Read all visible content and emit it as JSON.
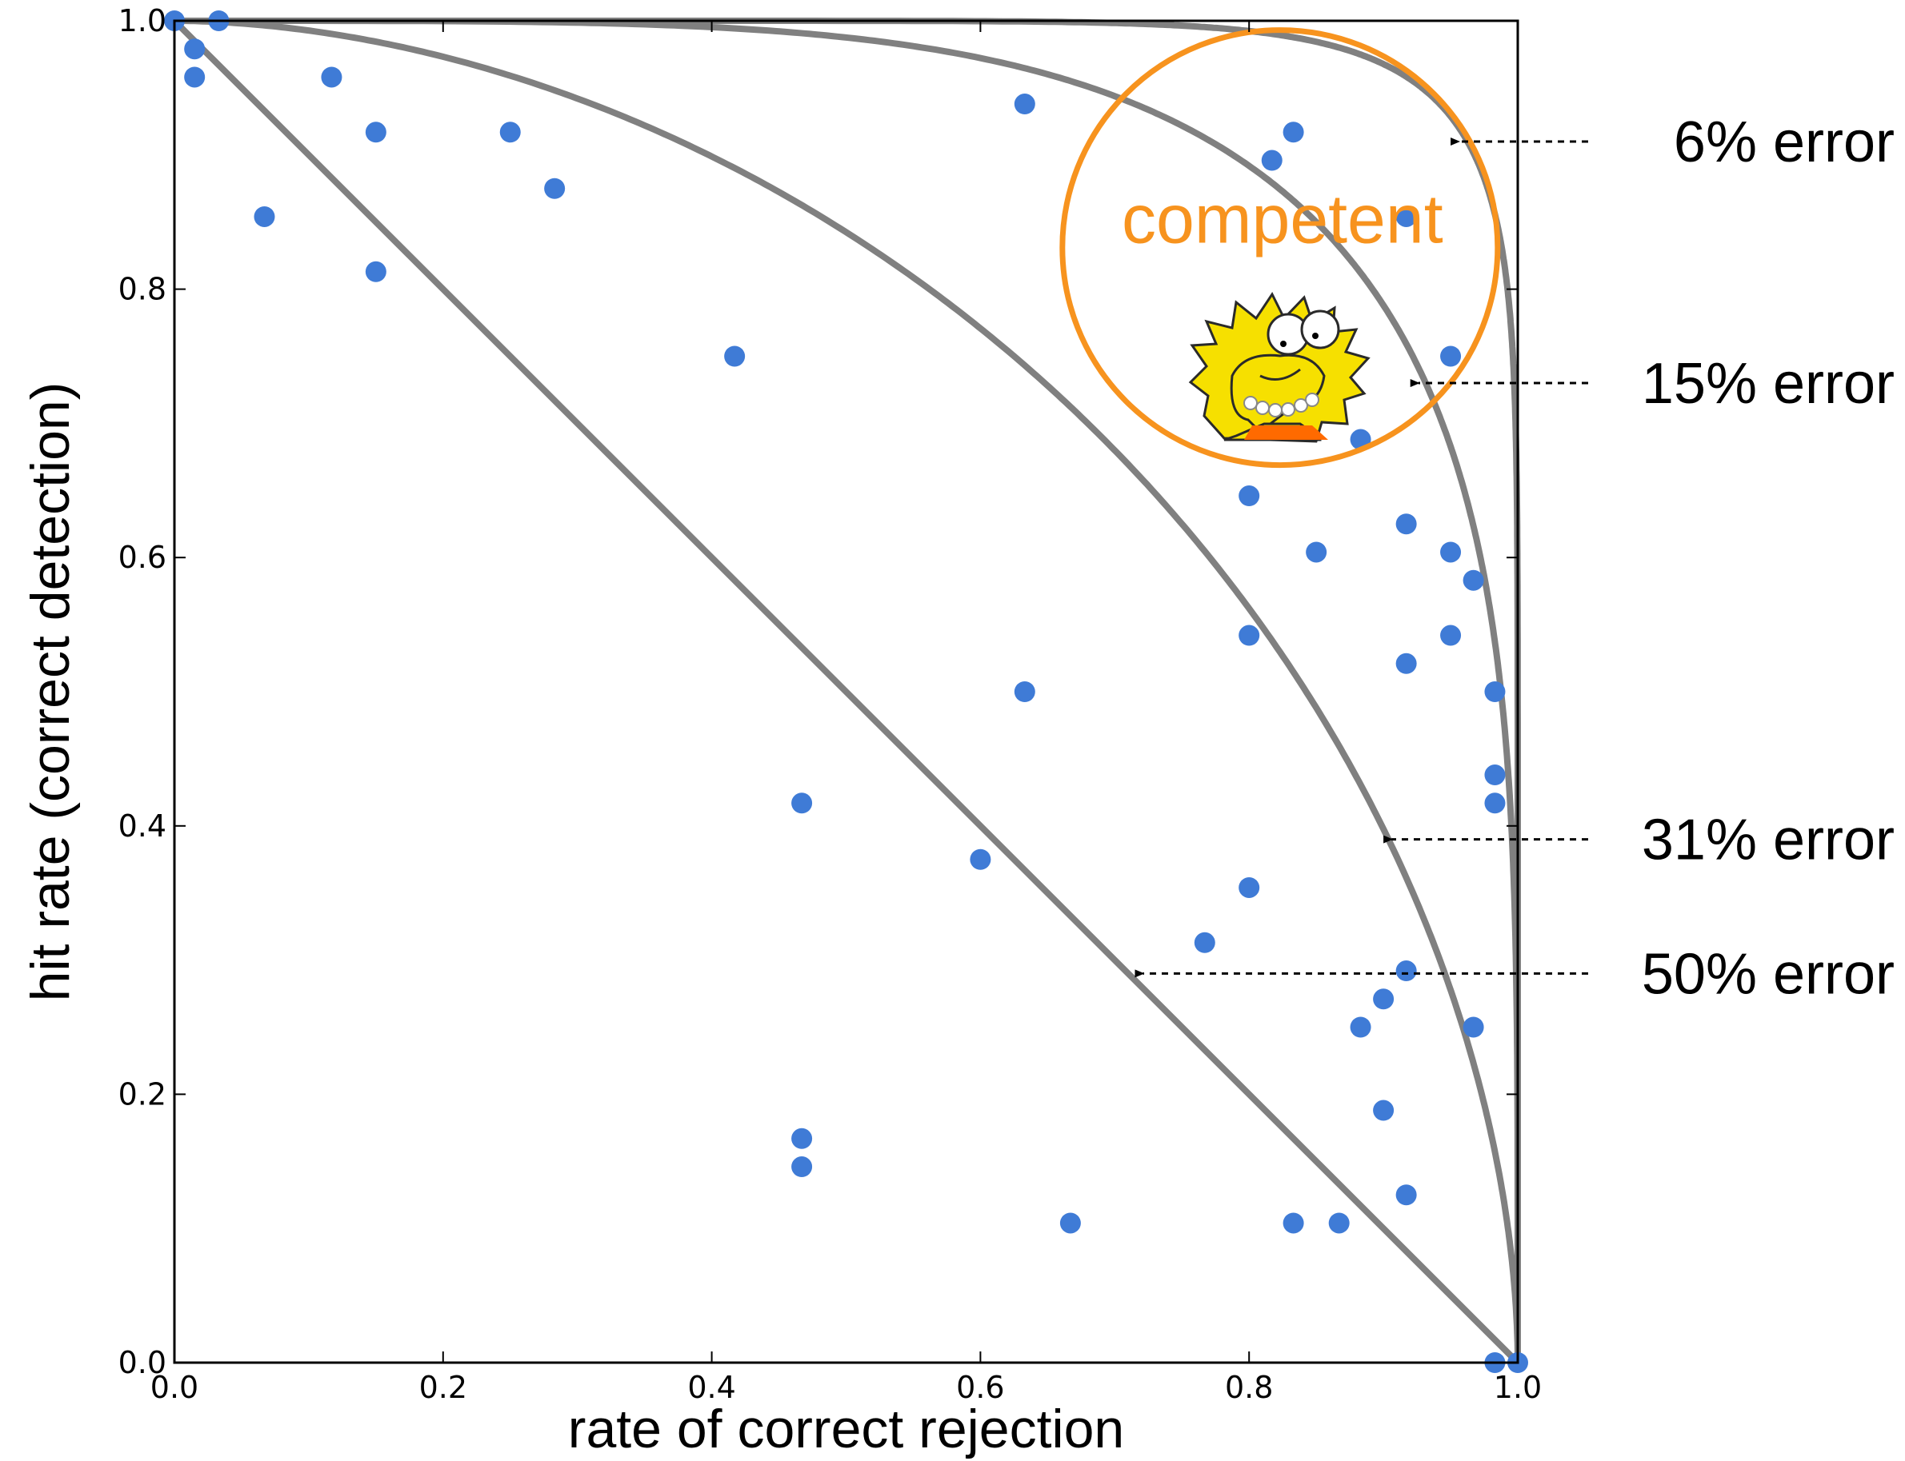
{
  "chart_data": {
    "type": "scatter",
    "xlabel": "rate of correct rejection",
    "ylabel": "hit rate  (correct detection)",
    "xlim": [
      0.0,
      1.0
    ],
    "ylim": [
      0.0,
      1.0
    ],
    "xticks": [
      "0.0",
      "0.2",
      "0.4",
      "0.6",
      "0.8",
      "1.0"
    ],
    "yticks": [
      "0.0",
      "0.2",
      "0.4",
      "0.6",
      "0.8",
      "1.0"
    ],
    "grid": false,
    "point_color": "#3f7bd6",
    "curve_color": "#808080",
    "highlight_color": "#f7931e",
    "points": [
      {
        "x": 0.0,
        "y": 1.0
      },
      {
        "x": 0.033,
        "y": 1.0
      },
      {
        "x": 0.015,
        "y": 0.979
      },
      {
        "x": 0.015,
        "y": 0.958
      },
      {
        "x": 0.117,
        "y": 0.958
      },
      {
        "x": 0.15,
        "y": 0.917
      },
      {
        "x": 0.25,
        "y": 0.917
      },
      {
        "x": 0.283,
        "y": 0.875
      },
      {
        "x": 0.067,
        "y": 0.854
      },
      {
        "x": 0.15,
        "y": 0.813
      },
      {
        "x": 0.417,
        "y": 0.75
      },
      {
        "x": 0.633,
        "y": 0.938
      },
      {
        "x": 0.817,
        "y": 0.896
      },
      {
        "x": 0.833,
        "y": 0.917
      },
      {
        "x": 0.917,
        "y": 0.854
      },
      {
        "x": 0.95,
        "y": 0.75
      },
      {
        "x": 0.883,
        "y": 0.688
      },
      {
        "x": 0.8,
        "y": 0.646
      },
      {
        "x": 0.917,
        "y": 0.625
      },
      {
        "x": 0.85,
        "y": 0.604
      },
      {
        "x": 0.95,
        "y": 0.604
      },
      {
        "x": 0.967,
        "y": 0.583
      },
      {
        "x": 0.8,
        "y": 0.542
      },
      {
        "x": 0.95,
        "y": 0.542
      },
      {
        "x": 0.917,
        "y": 0.521
      },
      {
        "x": 0.633,
        "y": 0.5
      },
      {
        "x": 0.983,
        "y": 0.5
      },
      {
        "x": 0.983,
        "y": 0.438
      },
      {
        "x": 0.983,
        "y": 0.417
      },
      {
        "x": 0.467,
        "y": 0.417
      },
      {
        "x": 0.6,
        "y": 0.375
      },
      {
        "x": 0.8,
        "y": 0.354
      },
      {
        "x": 0.767,
        "y": 0.313
      },
      {
        "x": 0.917,
        "y": 0.292
      },
      {
        "x": 0.9,
        "y": 0.271
      },
      {
        "x": 0.883,
        "y": 0.25
      },
      {
        "x": 0.967,
        "y": 0.25
      },
      {
        "x": 0.9,
        "y": 0.188
      },
      {
        "x": 0.467,
        "y": 0.167
      },
      {
        "x": 0.467,
        "y": 0.146
      },
      {
        "x": 0.917,
        "y": 0.125
      },
      {
        "x": 0.667,
        "y": 0.104
      },
      {
        "x": 0.833,
        "y": 0.104
      },
      {
        "x": 0.867,
        "y": 0.104
      },
      {
        "x": 0.983,
        "y": 0.0
      },
      {
        "x": 1.0,
        "y": 0.0
      }
    ],
    "curves": [
      {
        "label": "6% error",
        "error": 0.06,
        "arrow_at": [
          0.95,
          0.91
        ]
      },
      {
        "label": "15% error",
        "error": 0.15,
        "arrow_at": [
          0.92,
          0.73
        ]
      },
      {
        "label": "31% error",
        "error": 0.31,
        "arrow_at": [
          0.9,
          0.39
        ]
      },
      {
        "label": "50% error",
        "error": 0.5,
        "arrow_at": [
          0.715,
          0.29
        ]
      }
    ],
    "highlight": {
      "label": "competent",
      "center": [
        0.823,
        0.831
      ],
      "radius": 0.162
    }
  }
}
